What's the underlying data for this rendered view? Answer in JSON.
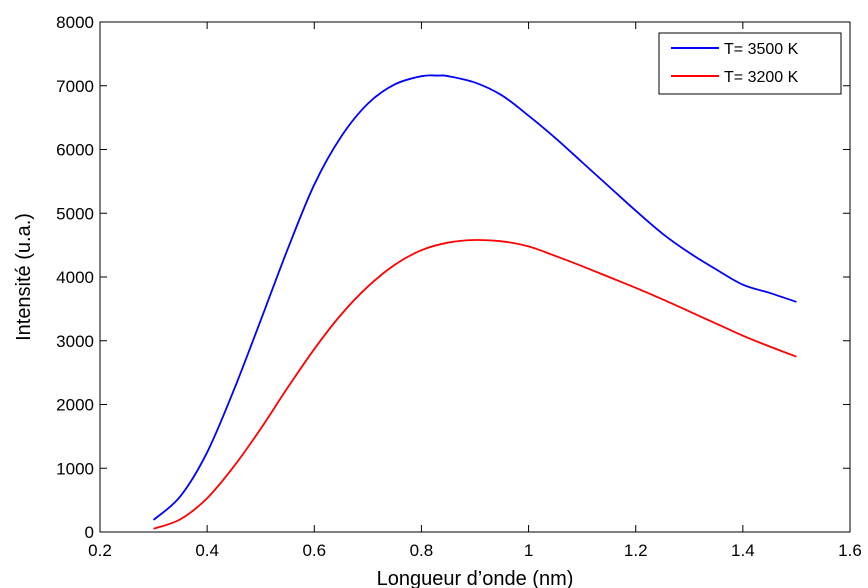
{
  "chart_data": {
    "type": "line",
    "title": "",
    "xlabel": "Longueur d’onde (nm)",
    "ylabel": "Intensité (u.a.)",
    "xlim": [
      0.2,
      1.6
    ],
    "ylim": [
      0,
      8000
    ],
    "xticks": [
      0.2,
      0.4,
      0.6,
      0.8,
      1,
      1.2,
      1.4,
      1.6
    ],
    "xtick_labels": [
      "0.2",
      "0.4",
      "0.6",
      "0.8",
      "1",
      "1.2",
      "1.4",
      "1.6"
    ],
    "yticks": [
      0,
      1000,
      2000,
      3000,
      4000,
      5000,
      6000,
      7000,
      8000
    ],
    "ytick_labels": [
      "0",
      "1000",
      "2000",
      "3000",
      "4000",
      "5000",
      "6000",
      "7000",
      "8000"
    ],
    "grid": false,
    "legend_position": "top-right",
    "series": [
      {
        "name": "T= 3500 K",
        "color": "#0000ff",
        "x": [
          0.3,
          0.35,
          0.4,
          0.45,
          0.5,
          0.55,
          0.6,
          0.65,
          0.7,
          0.75,
          0.8,
          0.83,
          0.85,
          0.9,
          0.95,
          1.0,
          1.05,
          1.1,
          1.15,
          1.2,
          1.25,
          1.3,
          1.35,
          1.4,
          1.45,
          1.5
        ],
        "y": [
          190,
          560,
          1250,
          2230,
          3320,
          4430,
          5450,
          6200,
          6720,
          7020,
          7150,
          7160,
          7150,
          7050,
          6850,
          6530,
          6180,
          5800,
          5420,
          5040,
          4680,
          4380,
          4120,
          3880,
          3750,
          3610
        ]
      },
      {
        "name": "T= 3200 K",
        "color": "#ff0000",
        "x": [
          0.3,
          0.35,
          0.4,
          0.45,
          0.5,
          0.55,
          0.6,
          0.65,
          0.7,
          0.75,
          0.8,
          0.85,
          0.9,
          0.95,
          1.0,
          1.05,
          1.1,
          1.15,
          1.2,
          1.25,
          1.3,
          1.35,
          1.4,
          1.45,
          1.5
        ],
        "y": [
          50,
          200,
          530,
          1030,
          1620,
          2260,
          2870,
          3410,
          3850,
          4190,
          4420,
          4540,
          4580,
          4560,
          4480,
          4330,
          4170,
          4000,
          3830,
          3650,
          3460,
          3270,
          3080,
          2910,
          2750
        ]
      }
    ]
  }
}
